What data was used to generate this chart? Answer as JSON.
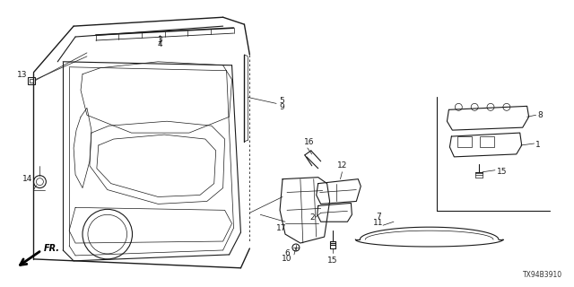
{
  "bg_color": "#ffffff",
  "line_color": "#1a1a1a",
  "figure_number": "TX94B3910",
  "door_color": "#333333",
  "dashed_color": "#666666"
}
